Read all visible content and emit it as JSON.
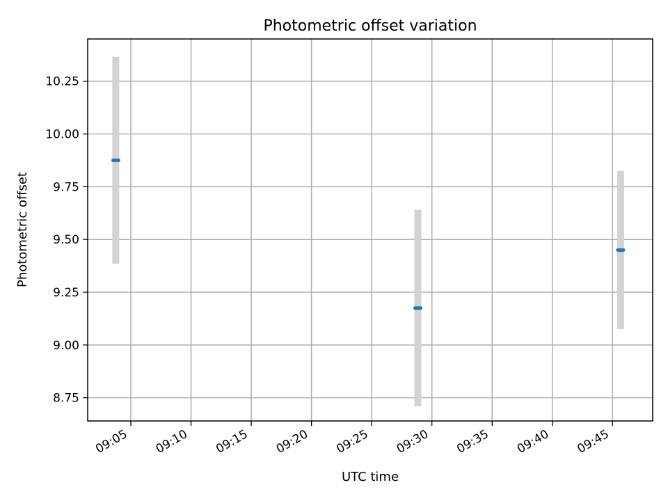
{
  "chart_data": {
    "type": "scatter",
    "title": "Photometric offset variation",
    "xlabel": "UTC time",
    "ylabel": "Photometric offset",
    "x_ticks": [
      "09:05",
      "09:10",
      "09:15",
      "09:20",
      "09:25",
      "09:30",
      "09:35",
      "09:40",
      "09:45"
    ],
    "y_ticks": [
      "8.75",
      "9.00",
      "9.25",
      "9.50",
      "9.75",
      "10.00",
      "10.25"
    ],
    "xlim": [
      "09:01:25",
      "09:48:20"
    ],
    "ylim": [
      8.64,
      10.45
    ],
    "grid": true,
    "series": [
      {
        "points": [
          {
            "x": "09:03:45",
            "y": 9.875,
            "yerr": 0.49
          },
          {
            "x": "09:28:50",
            "y": 9.175,
            "yerr": 0.465
          },
          {
            "x": "09:45:40",
            "y": 9.45,
            "yerr": 0.375
          }
        ],
        "color": "#1f77b4",
        "errorbar_color": "#d3d3d3"
      }
    ]
  }
}
